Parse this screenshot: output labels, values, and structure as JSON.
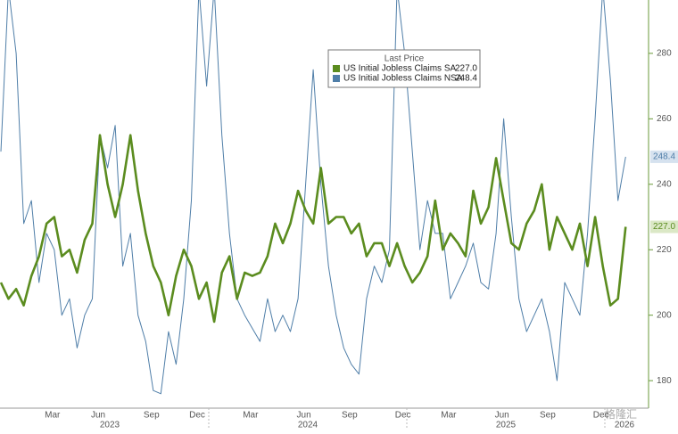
{
  "chart_data": {
    "type": "line",
    "legend_title": "Last Price",
    "categories": [
      null,
      null,
      null,
      null,
      null,
      null,
      null,
      "Mar",
      null,
      null,
      null,
      null,
      null,
      "Jun",
      null,
      null,
      null,
      null,
      null,
      null,
      "Sep",
      null,
      null,
      null,
      null,
      null,
      "Dec",
      null,
      null,
      null,
      null,
      null,
      null,
      "Mar",
      null,
      null,
      null,
      null,
      null,
      null,
      "Jun",
      null,
      null,
      null,
      null,
      null,
      "Sep",
      null,
      null,
      null,
      null,
      null,
      null,
      "Dec",
      null,
      null,
      null,
      null,
      null,
      "Mar",
      null,
      null,
      null,
      null,
      null,
      null,
      "Jun",
      null,
      null,
      null,
      null,
      null,
      "Sep",
      null,
      null,
      null,
      null,
      null,
      null,
      "Dec",
      null,
      null,
      null
    ],
    "years": [
      "2023",
      "2024",
      "2025",
      "2026"
    ],
    "series": [
      {
        "name": "US Initial Jobless Claims SA",
        "color": "#5b8c1f",
        "width": 2.6,
        "last_label": "227.0",
        "values": [
          210,
          205,
          208,
          203,
          212,
          218,
          228,
          230,
          218,
          220,
          213,
          223,
          228,
          255,
          240,
          230,
          240,
          255,
          238,
          225,
          215,
          210,
          200,
          212,
          220,
          215,
          205,
          210,
          198,
          213,
          218,
          205,
          213,
          212,
          213,
          218,
          228,
          222,
          228,
          238,
          232,
          228,
          245,
          228,
          230,
          230,
          225,
          228,
          218,
          222,
          222,
          215,
          222,
          215,
          210,
          213,
          218,
          235,
          220,
          225,
          222,
          218,
          238,
          228,
          233,
          248,
          235,
          222,
          220,
          228,
          232,
          240,
          220,
          230,
          225,
          220,
          228,
          215,
          230,
          215,
          203,
          205,
          227
        ]
      },
      {
        "name": "US Initial Jobless Claims NSA",
        "color": "#4f7ea8",
        "width": 1,
        "last_label": "248.4",
        "values": [
          250,
          300,
          280,
          228,
          235,
          210,
          225,
          220,
          200,
          205,
          190,
          200,
          205,
          255,
          245,
          258,
          215,
          225,
          200,
          192,
          177,
          176,
          195,
          185,
          205,
          235,
          300,
          270,
          300,
          255,
          225,
          205,
          200,
          196,
          192,
          205,
          195,
          200,
          195,
          205,
          240,
          275,
          240,
          215,
          200,
          190,
          185,
          182,
          205,
          215,
          210,
          220,
          300,
          280,
          250,
          220,
          235,
          225,
          225,
          205,
          210,
          215,
          222,
          210,
          208,
          225,
          260,
          230,
          205,
          195,
          200,
          205,
          195,
          180,
          210,
          205,
          200,
          225,
          260,
          300,
          272,
          235,
          248.4
        ]
      }
    ],
    "ylim": [
      171.6,
      296.3
    ],
    "yticks": [
      180,
      200,
      220,
      240,
      260,
      280
    ],
    "watermark": "格隆汇"
  }
}
